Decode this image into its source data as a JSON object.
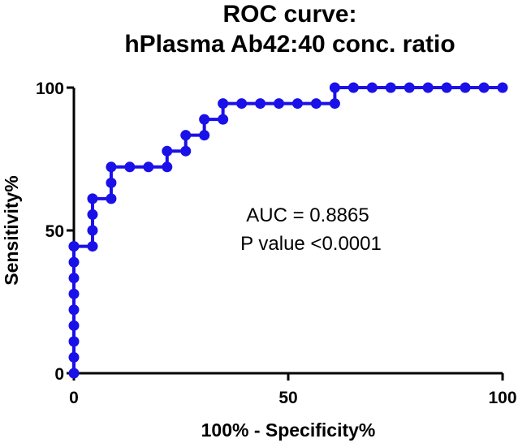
{
  "chart_data": {
    "type": "line",
    "title": [
      "ROC curve:",
      "hPlasma Ab42:40 conc. ratio"
    ],
    "xlabel": "100% - Specificity%",
    "ylabel": "Sensitivity%",
    "xlim": [
      0,
      100
    ],
    "ylim": [
      0,
      100
    ],
    "xticks": [
      0,
      50,
      100
    ],
    "yticks": [
      0,
      50,
      100
    ],
    "grid": false,
    "series": [
      {
        "name": "ROC",
        "color": "#1a10e8",
        "step": "post",
        "x": [
          0,
          0,
          0,
          0,
          0,
          0,
          0,
          0,
          0,
          0,
          4.35,
          4.35,
          4.35,
          4.35,
          8.7,
          8.7,
          8.7,
          13.04,
          17.39,
          21.74,
          21.74,
          26.09,
          26.09,
          30.43,
          30.43,
          34.78,
          34.78,
          39.13,
          43.48,
          47.83,
          52.17,
          56.52,
          60.87,
          60.87,
          65.22,
          69.57,
          73.91,
          78.26,
          82.61,
          86.96,
          91.3,
          95.65,
          100
        ],
        "y": [
          0,
          5.56,
          11.11,
          16.67,
          22.22,
          27.78,
          33.33,
          38.89,
          44.44,
          44.44,
          44.44,
          50,
          55.56,
          61.11,
          61.11,
          66.67,
          72.22,
          72.22,
          72.22,
          72.22,
          77.78,
          77.78,
          83.33,
          83.33,
          88.89,
          88.89,
          94.44,
          94.44,
          94.44,
          94.44,
          94.44,
          94.44,
          94.44,
          100,
          100,
          100,
          100,
          100,
          100,
          100,
          100,
          100,
          100
        ]
      }
    ],
    "annotations": [
      "AUC = 0.8865",
      "P value <0.0001"
    ]
  }
}
